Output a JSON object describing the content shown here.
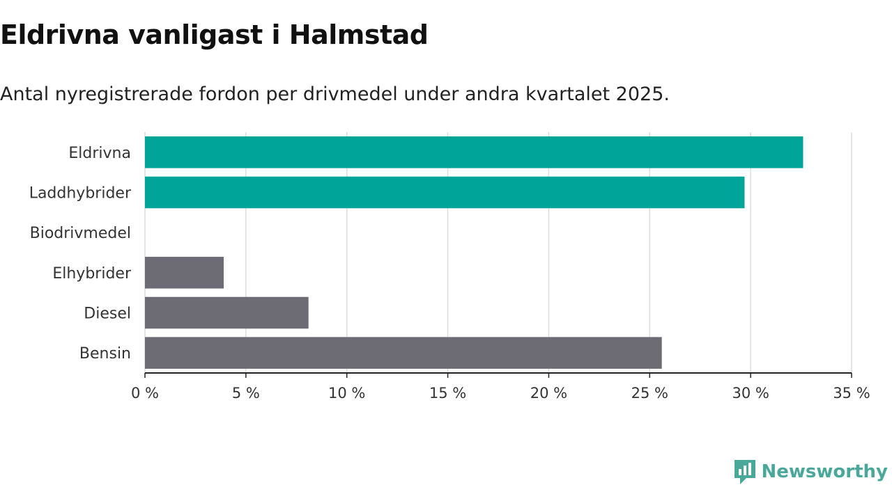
{
  "chart_data": {
    "type": "bar",
    "orientation": "horizontal",
    "title": "Eldrivna vanligast i Halmstad",
    "subtitle": "Antal nyregistrerade fordon per drivmedel under andra kvartalet 2025.",
    "categories": [
      "Eldrivna",
      "Laddhybrider",
      "Biodrivmedel",
      "Elhybrider",
      "Diesel",
      "Bensin"
    ],
    "values": [
      32.6,
      29.7,
      0,
      3.9,
      8.1,
      25.6
    ],
    "bar_colors": [
      "#00a499",
      "#00a499",
      "#00a499",
      "#6d6b73",
      "#6d6b73",
      "#6d6b73"
    ],
    "xlim": [
      0,
      35
    ],
    "xticks": [
      0,
      5,
      10,
      15,
      20,
      25,
      30,
      35
    ],
    "xtick_labels": [
      "0 %",
      "5 %",
      "10 %",
      "15 %",
      "20 %",
      "25 %",
      "30 %",
      "35 %"
    ],
    "grid": "vertical"
  },
  "brand": {
    "name": "Newsworthy",
    "color": "#4aa89a",
    "icon": "newsworthy-logo-icon"
  }
}
